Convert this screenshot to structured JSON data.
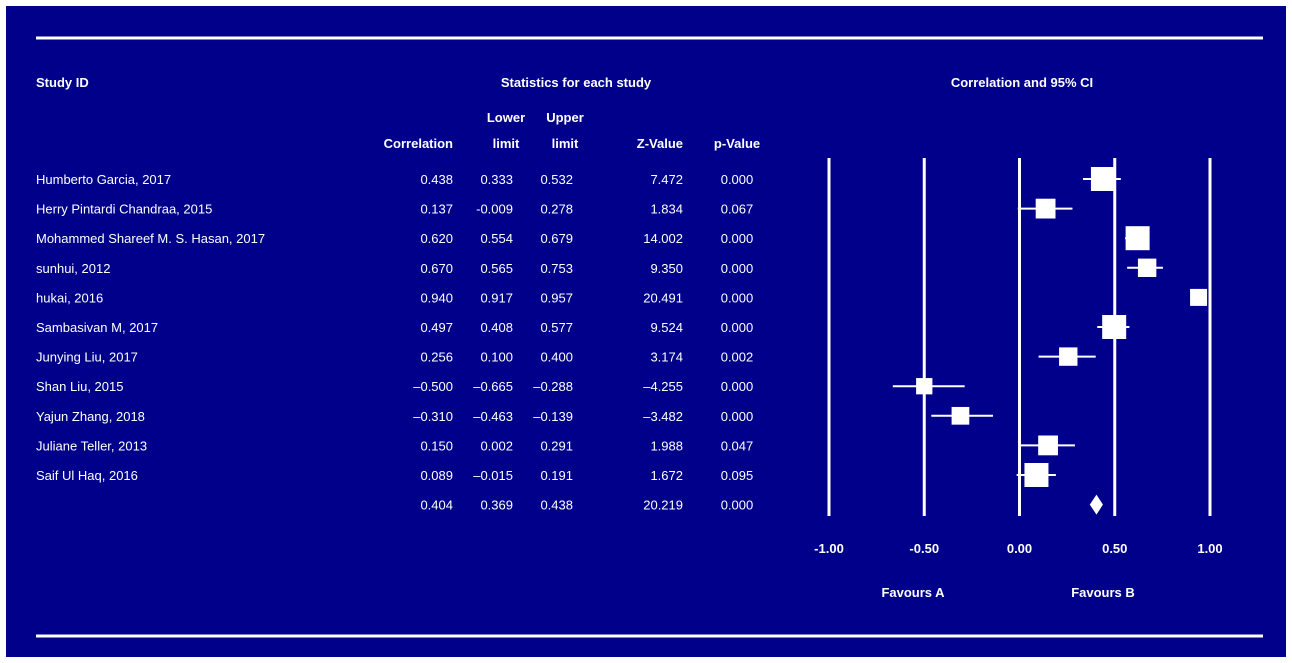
{
  "chart_data": {
    "type": "forest",
    "headers": {
      "study_id": "Study ID",
      "statistics": "Statistics for each study",
      "plot": "Correlation and 95% CI",
      "correlation": "Correlation",
      "lower_1": "Lower",
      "lower_2": "limit",
      "upper_1": "Upper",
      "upper_2": "limit",
      "z": "Z-Value",
      "p": "p-Value"
    },
    "studies": [
      {
        "name": "Humberto Garcia, 2017",
        "r": "0.438",
        "lower": "0.333",
        "upper": "0.532",
        "z": "7.472",
        "p": "0.000",
        "r_val": 0.438,
        "lo_val": 0.333,
        "hi_val": 0.532,
        "weight": 1.0
      },
      {
        "name": "Herry Pintardi Chandraa, 2015",
        "r": "0.137",
        "lower": "-0.009",
        "upper": "0.278",
        "z": "1.834",
        "p": "0.067",
        "r_val": 0.137,
        "lo_val": -0.009,
        "hi_val": 0.278,
        "weight": 0.7
      },
      {
        "name": "Mohammed Shareef M. S. Hasan, 2017",
        "r": "0.620",
        "lower": "0.554",
        "upper": "0.679",
        "z": "14.002",
        "p": "0.000",
        "r_val": 0.62,
        "lo_val": 0.554,
        "hi_val": 0.679,
        "weight": 1.0
      },
      {
        "name": "sunhui, 2012",
        "r": "0.670",
        "lower": "0.565",
        "upper": "0.753",
        "z": "9.350",
        "p": "0.000",
        "r_val": 0.67,
        "lo_val": 0.565,
        "hi_val": 0.753,
        "weight": 0.6
      },
      {
        "name": "hukai, 2016",
        "r": "0.940",
        "lower": "0.917",
        "upper": "0.957",
        "z": "20.491",
        "p": "0.000",
        "r_val": 0.94,
        "lo_val": 0.917,
        "hi_val": 0.957,
        "weight": 0.5
      },
      {
        "name": "Sambasivan M, 2017",
        "r": "0.497",
        "lower": "0.408",
        "upper": "0.577",
        "z": "9.524",
        "p": "0.000",
        "r_val": 0.497,
        "lo_val": 0.408,
        "hi_val": 0.577,
        "weight": 1.0
      },
      {
        "name": "Junying Liu, 2017",
        "r": "0.256",
        "lower": "0.100",
        "upper": "0.400",
        "z": "3.174",
        "p": "0.002",
        "r_val": 0.256,
        "lo_val": 0.1,
        "hi_val": 0.4,
        "weight": 0.6
      },
      {
        "name": "Shan Liu, 2015",
        "r": "–0.500",
        "lower": "–0.665",
        "upper": "–0.288",
        "z": "–4.255",
        "p": "0.000",
        "r_val": -0.5,
        "lo_val": -0.665,
        "hi_val": -0.288,
        "weight": 0.45
      },
      {
        "name": "Yajun Zhang, 2018",
        "r": "–0.310",
        "lower": "–0.463",
        "upper": "–0.139",
        "z": "–3.482",
        "p": "0.000",
        "r_val": -0.31,
        "lo_val": -0.463,
        "hi_val": -0.139,
        "weight": 0.55
      },
      {
        "name": "Juliane Teller, 2013",
        "r": "0.150",
        "lower": "0.002",
        "upper": "0.291",
        "z": "1.988",
        "p": "0.047",
        "r_val": 0.15,
        "lo_val": 0.002,
        "hi_val": 0.291,
        "weight": 0.7
      },
      {
        "name": "Saif Ul Haq, 2016",
        "r": "0.089",
        "lower": "–0.015",
        "upper": "0.191",
        "z": "1.672",
        "p": "0.095",
        "r_val": 0.089,
        "lo_val": -0.015,
        "hi_val": 0.191,
        "weight": 1.0
      }
    ],
    "summary": {
      "r": "0.404",
      "lower": "0.369",
      "upper": "0.438",
      "z": "20.219",
      "p": "0.000",
      "r_val": 0.404,
      "lo_val": 0.369,
      "hi_val": 0.438
    },
    "x_ticks": [
      "-1.00",
      "-0.50",
      "0.00",
      "0.50",
      "1.00"
    ],
    "x_tick_values": [
      -1.0,
      -0.5,
      0.0,
      0.5,
      1.0
    ],
    "xlim": [
      -1.0,
      1.0
    ],
    "favours_a": "Favours A",
    "favours_b": "Favours B",
    "colors": {
      "background": "#00008b",
      "foreground": "#ffffff"
    }
  }
}
